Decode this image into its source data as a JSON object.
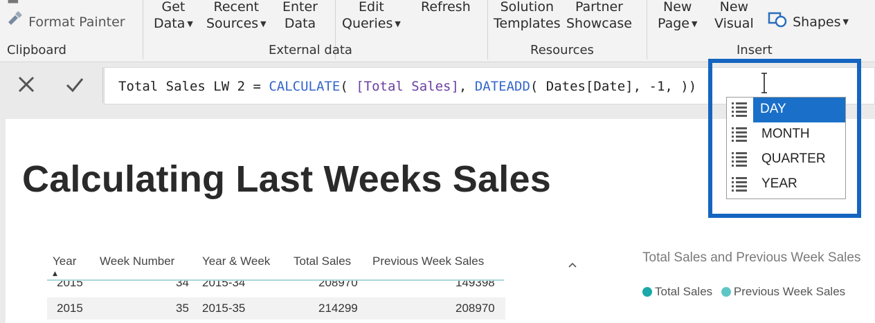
{
  "ribbon": {
    "format_painter": "Format Painter",
    "groups": {
      "clipboard": "Clipboard",
      "external_data": "External data",
      "resources": "Resources",
      "insert": "Insert"
    },
    "buttons": {
      "get_data": [
        "Get",
        "Data"
      ],
      "recent_sources": [
        "Recent",
        "Sources"
      ],
      "enter_data": [
        "Enter",
        "Data"
      ],
      "edit_queries": [
        "Edit",
        "Queries"
      ],
      "refresh": "Refresh",
      "solution_templates": [
        "Solution",
        "Templates"
      ],
      "partner_showcase": [
        "Partner",
        "Showcase"
      ],
      "new_page": [
        "New",
        "Page"
      ],
      "new_visual": [
        "New",
        "Visual"
      ],
      "shapes": "Shapes"
    }
  },
  "formula_bar": {
    "cancel_icon": "close-icon",
    "commit_icon": "checkmark-icon",
    "measure_name": "Total Sales LW 2",
    "equals": " = ",
    "func_calculate": "CALCULATE",
    "open_paren": "( ",
    "measure_ref": "[Total Sales]",
    "comma_sep": ", ",
    "func_dateadd": "DATEADD",
    "column_ref": "Dates[Date]",
    "arg_value": "-1",
    "closing": ", ))"
  },
  "intellisense": {
    "items": [
      {
        "label": "DAY",
        "selected": true
      },
      {
        "label": "MONTH",
        "selected": false
      },
      {
        "label": "QUARTER",
        "selected": false
      },
      {
        "label": "YEAR",
        "selected": false
      }
    ],
    "highlight_color": "#1565c0",
    "selected_color": "#1a6fc9"
  },
  "report": {
    "title": "Calculating Last Weeks Sales",
    "table": {
      "columns": [
        "Year",
        "Week Number",
        "Year & Week",
        "Total Sales",
        "Previous Week Sales"
      ],
      "rows": [
        [
          "2015",
          "34",
          "2015-34",
          "208970",
          "149398"
        ],
        [
          "2015",
          "35",
          "2015-35",
          "214299",
          "208970"
        ]
      ]
    },
    "chart": {
      "title": "Total Sales and Previous Week Sales",
      "legend": [
        {
          "name": "Total Sales",
          "color": "#1aa8a8"
        },
        {
          "name": "Previous Week Sales",
          "color": "#5fc6c6"
        }
      ]
    }
  }
}
